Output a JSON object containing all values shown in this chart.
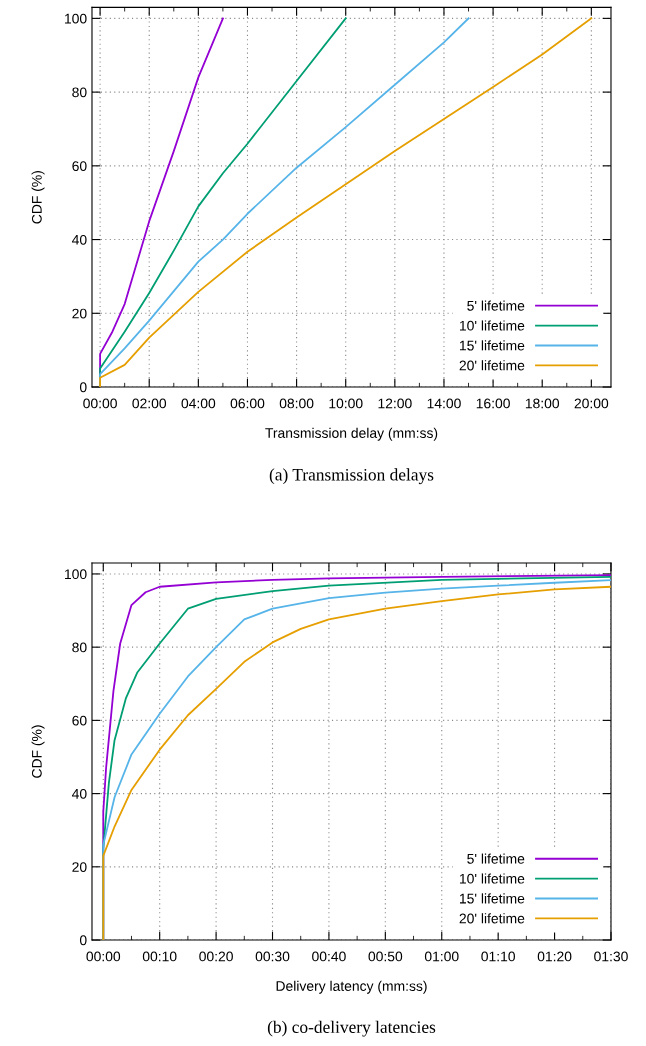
{
  "chart_data": [
    {
      "type": "line",
      "xlabel": "Transmission delay (mm:ss)",
      "ylabel": "CDF (%)",
      "annotations": [
        "(a) Transmission delays"
      ],
      "xlim": [
        -0.33,
        20.8
      ],
      "ylim": [
        0,
        103
      ],
      "xticks": [
        {
          "value": 0,
          "label": "00:00"
        },
        {
          "value": 1,
          "label": null
        },
        {
          "value": 2,
          "label": "02:00"
        },
        {
          "value": 3,
          "label": null
        },
        {
          "value": 4,
          "label": "04:00"
        },
        {
          "value": 5,
          "label": null
        },
        {
          "value": 6,
          "label": "06:00"
        },
        {
          "value": 7,
          "label": null
        },
        {
          "value": 8,
          "label": "08:00"
        },
        {
          "value": 9,
          "label": null
        },
        {
          "value": 10,
          "label": "10:00"
        },
        {
          "value": 11,
          "label": null
        },
        {
          "value": 12,
          "label": "12:00"
        },
        {
          "value": 13,
          "label": null
        },
        {
          "value": 14,
          "label": "14:00"
        },
        {
          "value": 15,
          "label": null
        },
        {
          "value": 16,
          "label": "16:00"
        },
        {
          "value": 17,
          "label": null
        },
        {
          "value": 18,
          "label": "18:00"
        },
        {
          "value": 19,
          "label": null
        },
        {
          "value": 20,
          "label": "20:00"
        }
      ],
      "yticks": [
        0,
        20,
        40,
        60,
        80,
        100
      ],
      "grid": true,
      "legend": "bottom right",
      "line_style": "solid",
      "marker": "none",
      "series": [
        {
          "name": "5' lifetime",
          "color": "#9400d3",
          "x": [
            0,
            0,
            0.5,
            1,
            2,
            3,
            4,
            5
          ],
          "values": [
            0,
            9,
            15,
            22.5,
            45,
            64,
            84,
            100
          ]
        },
        {
          "name": "10' lifetime",
          "color": "#009e73",
          "x": [
            0,
            0,
            1,
            2,
            3,
            4,
            5,
            6,
            8,
            10
          ],
          "values": [
            0,
            5,
            15,
            25.5,
            37,
            49,
            58,
            66,
            83,
            100
          ]
        },
        {
          "name": "15' lifetime",
          "color": "#56b4e9",
          "x": [
            0,
            0,
            1,
            2,
            4,
            5,
            6,
            8,
            10,
            12,
            14,
            15
          ],
          "values": [
            0,
            3.5,
            10.5,
            18,
            34,
            40,
            47,
            59.5,
            70.5,
            82,
            93.5,
            100
          ]
        },
        {
          "name": "20' lifetime",
          "color": "#e69f00",
          "x": [
            0,
            0,
            1,
            2,
            4,
            6,
            8,
            10,
            12,
            14,
            16,
            18,
            20
          ],
          "values": [
            0,
            2.5,
            6,
            13.4,
            25.8,
            36.7,
            46,
            55,
            64,
            72.7,
            81.4,
            90.2,
            100
          ]
        }
      ]
    },
    {
      "type": "line",
      "xlabel": "Delivery latency (mm:ss)",
      "ylabel": "CDF (%)",
      "annotations": [
        "(b) co-delivery latencies"
      ],
      "xlim": [
        -2,
        90
      ],
      "ylim": [
        0,
        103
      ],
      "xticks": [
        {
          "value": 0,
          "label": "00:00"
        },
        {
          "value": 5,
          "label": null
        },
        {
          "value": 10,
          "label": "00:10"
        },
        {
          "value": 15,
          "label": null
        },
        {
          "value": 20,
          "label": "00:20"
        },
        {
          "value": 25,
          "label": null
        },
        {
          "value": 30,
          "label": "00:30"
        },
        {
          "value": 35,
          "label": null
        },
        {
          "value": 40,
          "label": "00:40"
        },
        {
          "value": 45,
          "label": null
        },
        {
          "value": 50,
          "label": "00:50"
        },
        {
          "value": 55,
          "label": null
        },
        {
          "value": 60,
          "label": "01:00"
        },
        {
          "value": 65,
          "label": null
        },
        {
          "value": 70,
          "label": "01:10"
        },
        {
          "value": 75,
          "label": null
        },
        {
          "value": 80,
          "label": "01:20"
        },
        {
          "value": 85,
          "label": null
        },
        {
          "value": 90,
          "label": "01:30"
        }
      ],
      "yticks": [
        0,
        20,
        40,
        60,
        80,
        100
      ],
      "grid": true,
      "legend": "bottom right",
      "line_style": "solid",
      "marker": "none",
      "series": [
        {
          "name": "5' lifetime",
          "color": "#9400d3",
          "x": [
            0,
            0,
            0.5,
            1.8,
            3,
            5,
            7.5,
            10,
            20,
            30,
            40,
            60,
            90
          ],
          "values": [
            0,
            35,
            47,
            68,
            81,
            91.5,
            95,
            96.5,
            97.7,
            98.4,
            98.8,
            99.2,
            99.7
          ]
        },
        {
          "name": "10' lifetime",
          "color": "#009e73",
          "x": [
            0,
            0,
            1,
            2,
            4,
            6,
            10,
            15,
            20,
            30,
            40,
            60,
            90
          ],
          "values": [
            0,
            25,
            43,
            54.6,
            66,
            73,
            81,
            90.5,
            93.2,
            95.3,
            96.8,
            98.4,
            99.2
          ]
        },
        {
          "name": "15' lifetime",
          "color": "#56b4e9",
          "x": [
            0,
            0,
            2,
            5,
            10,
            15,
            20,
            25,
            30,
            40,
            50,
            60,
            70,
            80,
            90
          ],
          "values": [
            0,
            26,
            39,
            50.7,
            61.8,
            72,
            80,
            87.6,
            90.5,
            93.4,
            94.9,
            96,
            96.8,
            97.6,
            98.3
          ]
        },
        {
          "name": "20' lifetime",
          "color": "#e69f00",
          "x": [
            0,
            0,
            2,
            5,
            10,
            15,
            20,
            25,
            30,
            35,
            40,
            50,
            60,
            70,
            80,
            90
          ],
          "values": [
            0,
            23,
            31,
            41,
            52,
            61.4,
            68.6,
            76,
            81.3,
            85,
            87.6,
            90.5,
            92.6,
            94.4,
            95.8,
            96.5
          ]
        }
      ]
    }
  ]
}
